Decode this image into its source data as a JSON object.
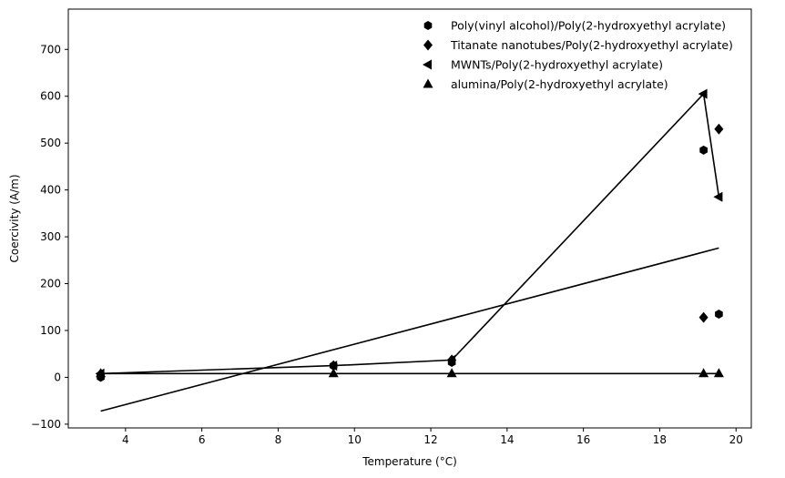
{
  "chart_data": {
    "type": "scatter",
    "title": "",
    "xlabel": "Temperature (°C)",
    "ylabel": "Coercivity (A/m)",
    "xlim": [
      2.5,
      20.4
    ],
    "ylim": [
      -108,
      786
    ],
    "xticks": [
      4,
      6,
      8,
      10,
      12,
      14,
      16,
      18,
      20
    ],
    "yticks": [
      -100,
      0,
      100,
      200,
      300,
      400,
      500,
      600,
      700
    ],
    "grid": false,
    "legend_position": "top-right",
    "series": [
      {
        "name": "Poly(vinyl alcohol)/Poly(2-hydroxyethyl acrylate)",
        "marker": "hexagon",
        "color": "#000000",
        "points": [
          [
            3.35,
            0
          ],
          [
            9.45,
            25
          ],
          [
            12.55,
            32
          ],
          [
            19.15,
            485
          ],
          [
            19.55,
            135
          ]
        ]
      },
      {
        "name": "Titanate nanotubes/Poly(2-hydroxyethyl acrylate)",
        "marker": "diamond",
        "color": "#000000",
        "points": [
          [
            3.35,
            7
          ],
          [
            9.45,
            25
          ],
          [
            12.55,
            37
          ],
          [
            19.15,
            128
          ],
          [
            19.55,
            530
          ]
        ]
      },
      {
        "name": "MWNTs/Poly(2-hydroxyethyl acrylate)",
        "marker": "triangle-left",
        "color": "#000000",
        "points": [
          [
            3.35,
            8
          ],
          [
            9.45,
            25
          ],
          [
            12.55,
            37
          ],
          [
            19.15,
            605
          ],
          [
            19.55,
            385
          ]
        ]
      },
      {
        "name": "alumina/Poly(2-hydroxyethyl acrylate)",
        "marker": "triangle-up",
        "color": "#000000",
        "points": [
          [
            3.35,
            8
          ],
          [
            9.45,
            8
          ],
          [
            12.55,
            8
          ],
          [
            19.15,
            8
          ],
          [
            19.55,
            8
          ]
        ]
      }
    ],
    "lines": [
      {
        "color": "#000000",
        "points": [
          [
            3.35,
            8
          ],
          [
            9.45,
            25
          ],
          [
            12.55,
            37
          ],
          [
            19.15,
            605
          ],
          [
            19.55,
            385
          ]
        ]
      },
      {
        "color": "#000000",
        "points": [
          [
            3.35,
            8
          ],
          [
            9.45,
            8
          ],
          [
            12.55,
            8
          ],
          [
            19.15,
            8
          ],
          [
            19.55,
            8
          ]
        ]
      },
      {
        "color": "#000000",
        "points": [
          [
            3.35,
            -72
          ],
          [
            19.55,
            276
          ]
        ]
      }
    ]
  }
}
